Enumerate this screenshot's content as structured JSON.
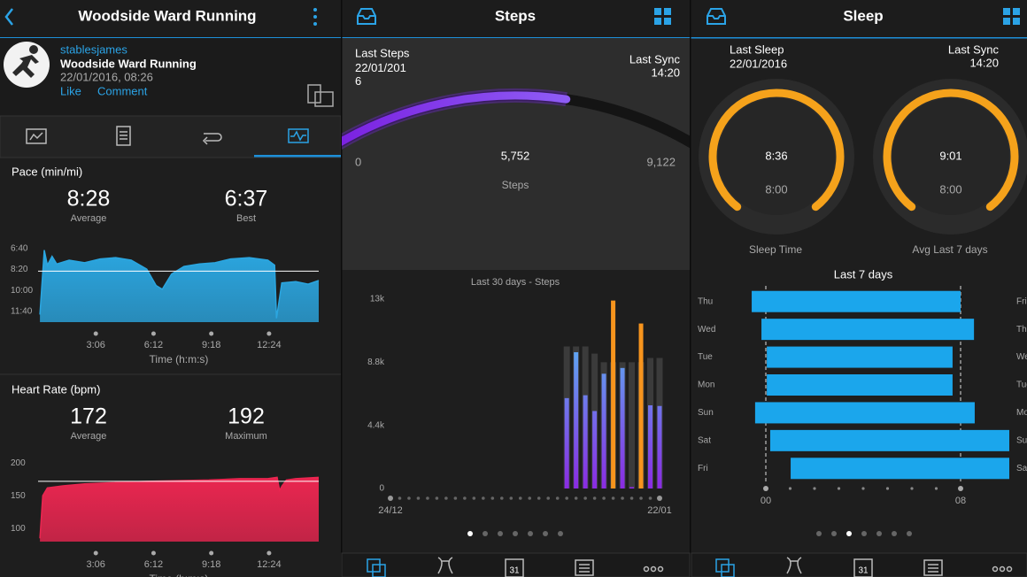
{
  "nav_calendar": "31",
  "activity": {
    "header": "Woodside Ward Running",
    "user": "stablesjames",
    "name": "Woodside Ward Running",
    "date": "22/01/2016, 08:26",
    "like": "Like",
    "comment": "Comment",
    "pace": {
      "type": "area",
      "title": "Pace (min/mi)",
      "average": {
        "value": 8.467,
        "label": "8:28"
      },
      "average_caption": "Average",
      "best": {
        "value": 6.617,
        "label": "6:37"
      },
      "best_caption": "Best",
      "ylim": [
        12.5,
        6.2
      ],
      "yticks": [
        {
          "value": 6.667,
          "label": "6:40"
        },
        {
          "value": 8.333,
          "label": "8:20"
        },
        {
          "value": 10,
          "label": "10:00"
        },
        {
          "value": 11.667,
          "label": "11:40"
        }
      ],
      "xlim": [
        0,
        904
      ],
      "xticks": [
        {
          "value": 186,
          "label": "3:06"
        },
        {
          "value": 372,
          "label": "6:12"
        },
        {
          "value": 558,
          "label": "9:18"
        },
        {
          "value": 744,
          "label": "12:24"
        }
      ],
      "xlabel": "Time (h:m:s)",
      "x": [
        6,
        20,
        30,
        45,
        60,
        100,
        150,
        200,
        250,
        300,
        350,
        380,
        400,
        430,
        470,
        520,
        570,
        620,
        680,
        740,
        762,
        768,
        785,
        830,
        870,
        904
      ],
      "values": [
        11.9,
        6.8,
        8.0,
        7.3,
        7.9,
        7.6,
        7.8,
        7.5,
        7.4,
        7.6,
        8.3,
        9.6,
        9.9,
        8.7,
        8.1,
        7.9,
        7.8,
        7.5,
        7.4,
        7.6,
        8.0,
        12.2,
        9.4,
        9.3,
        9.5,
        9.2
      ],
      "color": "#2ba6e0"
    },
    "heart_rate": {
      "type": "area",
      "title": "Heart Rate (bpm)",
      "average": 172,
      "average_caption": "Average",
      "maximum": 192,
      "maximum_caption": "Maximum",
      "ylim": [
        80,
        215
      ],
      "yticks": [
        200,
        150,
        100
      ],
      "xlim": [
        0,
        904
      ],
      "xticks": [
        {
          "value": 186,
          "label": "3:06"
        },
        {
          "value": 372,
          "label": "6:12"
        },
        {
          "value": 558,
          "label": "9:18"
        },
        {
          "value": 744,
          "label": "12:24"
        }
      ],
      "xlabel": "Time (h:m:s)",
      "x": [
        6,
        15,
        30,
        80,
        150,
        250,
        350,
        450,
        550,
        650,
        740,
        770,
        778,
        786,
        800,
        830,
        904
      ],
      "values": [
        85,
        150,
        162,
        165,
        168,
        170,
        172,
        173,
        174,
        176,
        176,
        178,
        158,
        165,
        174,
        176,
        178
      ],
      "color": "#ea2650"
    }
  },
  "steps": {
    "header": "Steps",
    "last_steps_label": "Last Steps",
    "last_steps_date": "22/01/2016",
    "last_sync_label": "Last Sync",
    "last_sync_time": "14:20",
    "gauge": {
      "min": 0,
      "value": {
        "value": 5752,
        "label": "5,752"
      },
      "goal": {
        "value": 9122,
        "label": "9,122"
      },
      "caption": "Steps"
    },
    "chart": {
      "type": "bar",
      "title": "Last 30 days - Steps",
      "categories": [
        "24/12",
        null,
        null,
        null,
        null,
        null,
        null,
        null,
        null,
        null,
        null,
        null,
        null,
        null,
        null,
        null,
        null,
        null,
        null,
        null,
        null,
        null,
        null,
        null,
        null,
        null,
        null,
        null,
        null,
        "22/01"
      ],
      "values": [
        null,
        null,
        null,
        null,
        null,
        null,
        null,
        null,
        null,
        null,
        null,
        null,
        null,
        null,
        null,
        null,
        null,
        null,
        null,
        6300,
        9500,
        6500,
        5400,
        8000,
        13100,
        8400,
        100,
        11500,
        5800,
        5752
      ],
      "goals": [
        null,
        null,
        null,
        null,
        null,
        null,
        null,
        null,
        null,
        null,
        null,
        null,
        null,
        null,
        null,
        null,
        null,
        null,
        null,
        9900,
        9900,
        9900,
        9400,
        8800,
        8800,
        8800,
        8800,
        8800,
        9100,
        9100
      ],
      "ylim": [
        0,
        13200
      ],
      "yticks": [
        0,
        {
          "value": 4400,
          "label": "4.4k"
        },
        {
          "value": 8800,
          "label": "8.8k"
        },
        {
          "value": 13200,
          "label": "13k"
        }
      ],
      "colors": {
        "bottom": "#8a2be2",
        "top": "#4fd2f7",
        "over_goal": "#f7941d",
        "goal": "#3b3b3b"
      }
    }
  },
  "sleep": {
    "header": "Sleep",
    "last_sleep_label": "Last Sleep",
    "last_sleep_date": "22/01/2016",
    "last_sync_label": "Last Sync",
    "last_sync_time": "14:20",
    "gauges": [
      {
        "value": "8:36",
        "goal": "8:00",
        "caption": "Sleep Time"
      },
      {
        "value": "9:01",
        "goal": "8:00",
        "caption": "Avg Last 7 days"
      }
    ],
    "chart": {
      "type": "range-bar",
      "title": "Last 7 days",
      "categories": [
        "Thu",
        "Wed",
        "Tue",
        "Mon",
        "Sun",
        "Sat",
        "Fri"
      ],
      "end_labels": [
        "Fri",
        "Thu",
        "Wed",
        "Tue",
        "Mon",
        "Sun",
        "Sat"
      ],
      "start": [
        -0.58,
        -0.18,
        0.04,
        0.04,
        -0.44,
        0.18,
        1.02
      ],
      "end": [
        8.0,
        8.55,
        7.67,
        7.67,
        8.58,
        10.0,
        10.0
      ],
      "xlim": [
        -1,
        11
      ],
      "xticks": [
        {
          "value": 0,
          "label": "00"
        },
        {
          "value": 8,
          "label": "08"
        }
      ],
      "minor_ticks": [
        1,
        2,
        3,
        4,
        5,
        6,
        7
      ],
      "color": "#1ba6ec"
    }
  }
}
